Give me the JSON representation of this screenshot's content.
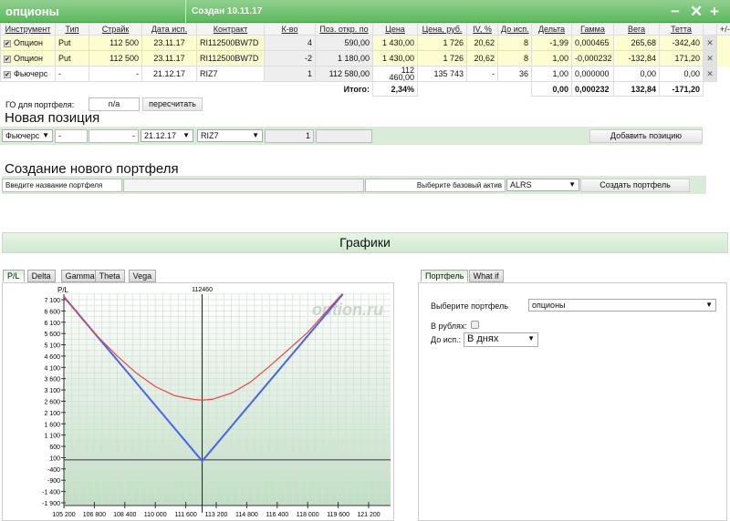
{
  "header": {
    "title": "опционы",
    "created": "Создан 10.11.17",
    "minus_icon": "minus-icon",
    "close_icon": "close-icon",
    "plus_icon": "plus-icon",
    "color": "#5db95d"
  },
  "table": {
    "columns": [
      "Инструмент",
      "Тип",
      "Страйк",
      "Дата исп.",
      "Контракт",
      "К-во",
      "Поз. откр. по",
      "Цена",
      "Цена, руб.",
      "IV, %",
      "До исп.",
      "Дельта",
      "Гамма",
      "Вега",
      "Тетта",
      "",
      "+/-"
    ],
    "rows": [
      {
        "checked": true,
        "instrument": "Опцион",
        "type": "Put",
        "strike": "112 500",
        "date": "23.11.17",
        "contract": "RI112500BW7D",
        "qty": "4",
        "open": "590,00",
        "price": "1 430,00",
        "price_rub": "1 726",
        "iv": "20,62",
        "days": "8",
        "delta": "-1,99",
        "gamma": "0,000465",
        "vega": "265,68",
        "theta": "-342,40"
      },
      {
        "checked": true,
        "instrument": "Опцион",
        "type": "Put",
        "strike": "112 500",
        "date": "23.11.17",
        "contract": "RI112500BW7D",
        "qty": "-2",
        "open": "1 180,00",
        "price": "1 430,00",
        "price_rub": "1 726",
        "iv": "20,62",
        "days": "8",
        "delta": "1,00",
        "gamma": "-0,000232",
        "vega": "-132,84",
        "theta": "171,20"
      },
      {
        "checked": true,
        "instrument": "Фьючерс",
        "type": "-",
        "strike": "-",
        "date": "21.12.17",
        "contract": "RIZ7",
        "qty": "1",
        "open": "112 580,00",
        "price": "112 460,00",
        "price_rub": "135 743",
        "iv": "-",
        "days": "36",
        "delta": "1,00",
        "gamma": "0,000000",
        "vega": "0,00",
        "theta": "0,00"
      }
    ],
    "totals": {
      "label": "Итого:",
      "pct": "2,34%",
      "delta": "0,00",
      "gamma": "0,000232",
      "vega": "132,84",
      "theta": "-171,20"
    }
  },
  "margin": {
    "label": "ГО для портфеля:",
    "value": "n/a",
    "recalc": "пересчитать"
  },
  "new_position": {
    "title": "Новая позиция",
    "instrument": "Фьючерс",
    "type": "-",
    "strike": "-",
    "date": "21.12.17",
    "contract": "RIZ7",
    "qty": "1",
    "add": "Добавить позицию"
  },
  "new_portfolio": {
    "title": "Создание нового портфеля",
    "name_label": "Введите название портфеля",
    "name_value": "",
    "asset_label": "Выберите базовый актив",
    "asset": "ALRS",
    "create": "Создать портфель"
  },
  "charts": {
    "title": "Графики",
    "tabs": [
      "P/L",
      "Delta",
      "Gamma",
      "Theta",
      "Vega"
    ],
    "active_tab": "P/L",
    "watermark": "option.ru"
  },
  "side": {
    "tabs": [
      "Портфель",
      "What if"
    ],
    "active_tab": "Портфель",
    "portfolio_label": "Выберите портфель",
    "portfolio": "опционы",
    "rub_label": "В рублях:",
    "rub_checked": false,
    "exp_label": "До исп.:",
    "exp": "В днях"
  },
  "chart_data": {
    "type": "line",
    "ylabel": "P/L",
    "vline_label": "112460",
    "vline": 112460,
    "xlim": [
      105200,
      122500
    ],
    "ylim": [
      -2000,
      7350
    ],
    "xticks": [
      105200,
      106800,
      108400,
      110000,
      111600,
      113200,
      114800,
      116400,
      118000,
      119600,
      121200
    ],
    "xtick_labels": [
      "105 200",
      "106 800",
      "108 400",
      "110 000",
      "111 600",
      "113 200",
      "114 800",
      "116 400",
      "118 000",
      "119 600",
      "121 200"
    ],
    "yticks": [
      7100,
      6600,
      6100,
      5600,
      5100,
      4600,
      4100,
      3600,
      3100,
      2600,
      2100,
      1600,
      1100,
      600,
      100,
      -400,
      -900,
      -1400,
      -1900
    ],
    "ytick_labels": [
      "7 100",
      "6 600",
      "6 100",
      "5 600",
      "5 100",
      "4 600",
      "4 100",
      "3 600",
      "3 100",
      "2 600",
      "2 100",
      "1 600",
      "1 100",
      "600",
      "100",
      "-400",
      "-900",
      "-1 400",
      "-1 900"
    ],
    "grid": true,
    "series": [
      {
        "color": "#4466ee",
        "points": [
          [
            105200,
            7230
          ],
          [
            112460,
            -50
          ],
          [
            119850,
            7350
          ]
        ]
      },
      {
        "color": "#ee4444",
        "points": [
          [
            105200,
            7250
          ],
          [
            106000,
            6400
          ],
          [
            107000,
            5450
          ],
          [
            108000,
            4600
          ],
          [
            109000,
            3850
          ],
          [
            110000,
            3250
          ],
          [
            111000,
            2850
          ],
          [
            112000,
            2680
          ],
          [
            112460,
            2650
          ],
          [
            113000,
            2690
          ],
          [
            114000,
            2960
          ],
          [
            115000,
            3450
          ],
          [
            116000,
            4150
          ],
          [
            117000,
            4900
          ],
          [
            118000,
            5650
          ],
          [
            119000,
            6600
          ],
          [
            119800,
            7350
          ]
        ]
      }
    ]
  }
}
